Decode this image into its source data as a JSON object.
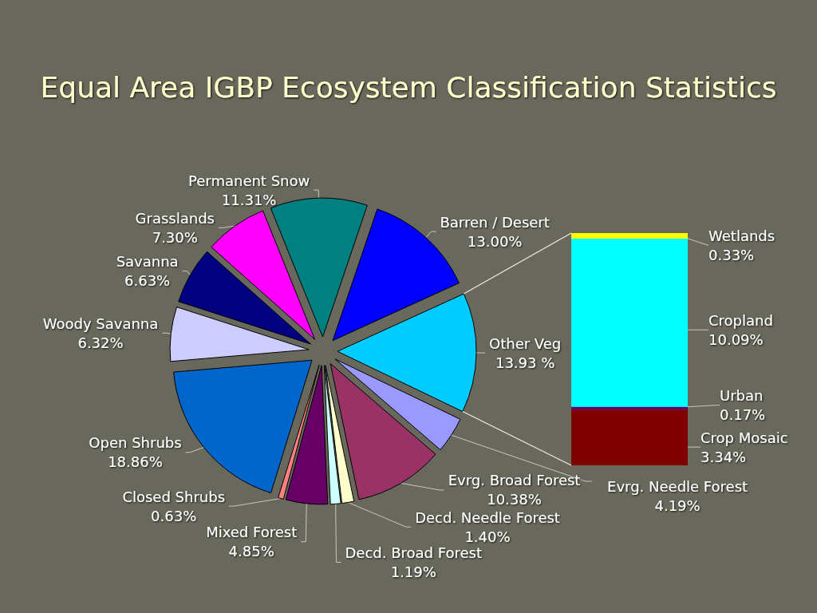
{
  "chart_data": [
    {
      "type": "pie",
      "title": "Equal Area IGBP Ecosystem Classification Statistics",
      "categories": [
        "Permanent Snow",
        "Barren / Desert",
        "Other Veg",
        "Evrg. Needle Forest",
        "Evrg. Broad Forest",
        "Decd. Needle Forest",
        "Decd. Broad Forest",
        "Mixed Forest",
        "Closed Shrubs",
        "Open Shrubs",
        "Woody Savanna",
        "Savanna",
        "Grasslands"
      ],
      "values": [
        11.31,
        13.0,
        13.93,
        4.19,
        10.38,
        1.4,
        1.19,
        4.85,
        0.63,
        18.86,
        6.32,
        6.63,
        7.3
      ],
      "value_labels": [
        "11.31%",
        "13.00%",
        "13.93 %",
        "4.19%",
        "10.38%",
        "1.40%",
        "1.19%",
        "4.85%",
        "0.63%",
        "18.86%",
        "6.32%",
        "6.63%",
        "7.30%"
      ],
      "colors": [
        "#008080",
        "#0000ff",
        "#00ccff",
        "#9999ff",
        "#993366",
        "#ffffcc",
        "#ccffff",
        "#660066",
        "#ff8080",
        "#0066cc",
        "#ccccff",
        "#000080",
        "#ff00ff"
      ]
    },
    {
      "type": "bar",
      "stacked": true,
      "categories": [
        null
      ],
      "series": [
        {
          "name": "Crop Mosaic",
          "color": "#800000",
          "values": [
            3.34
          ],
          "value_labels": [
            "3.34%"
          ]
        },
        {
          "name": "Urban",
          "color": "#660066",
          "values": [
            0.17
          ],
          "value_labels": [
            "0.17%"
          ]
        },
        {
          "name": "Cropland",
          "color": "#00ffff",
          "values": [
            10.09
          ],
          "value_labels": [
            "10.09%"
          ]
        },
        {
          "name": "Wetlands",
          "color": "#ffff00",
          "values": [
            0.33
          ],
          "value_labels": [
            "0.33%"
          ]
        }
      ]
    }
  ]
}
